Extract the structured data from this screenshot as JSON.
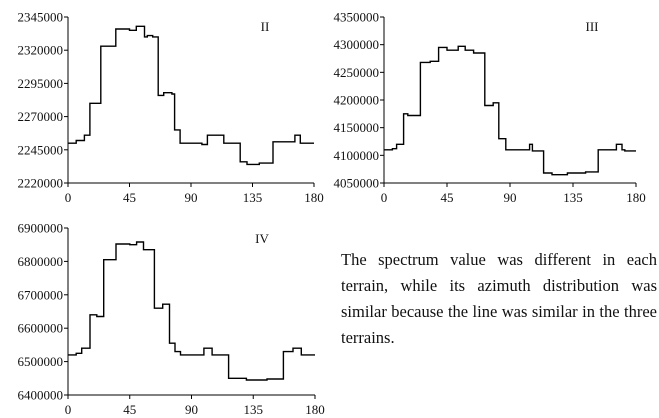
{
  "chart_data": [
    {
      "type": "line",
      "panel_label": "II",
      "x_ticks": [
        0,
        45,
        90,
        135,
        180
      ],
      "xlim": [
        0,
        180
      ],
      "ylim": [
        2220000,
        2345000
      ],
      "y_ticks": [
        "2345000",
        "2320000",
        "2295000",
        "2270000",
        "2245000",
        "2220000"
      ],
      "series": [
        {
          "x": [
            0,
            6,
            6,
            12,
            12,
            16,
            16,
            24,
            24,
            35,
            35,
            45,
            45,
            50,
            50,
            56,
            56,
            58,
            58,
            62,
            62,
            66,
            66,
            70,
            70,
            76,
            76,
            78,
            78,
            82,
            82,
            98,
            98,
            102,
            102,
            114,
            114,
            126,
            126,
            131,
            131,
            140,
            140,
            150,
            150,
            166,
            166,
            170,
            170,
            172,
            172,
            180
          ],
          "y": [
            2250000,
            2250000,
            2252000,
            2252000,
            2256000,
            2256000,
            2280000,
            2280000,
            2323000,
            2323000,
            2336000,
            2336000,
            2335000,
            2335000,
            2338000,
            2338000,
            2330000,
            2330000,
            2331000,
            2331000,
            2330000,
            2330000,
            2286000,
            2286000,
            2288000,
            2288000,
            2287000,
            2287000,
            2260000,
            2260000,
            2250000,
            2250000,
            2249000,
            2249000,
            2256000,
            2256000,
            2250000,
            2250000,
            2236000,
            2236000,
            2234000,
            2234000,
            2235000,
            2235000,
            2251000,
            2251000,
            2256000,
            2256000,
            2250000,
            2250000,
            2250000,
            2250000
          ]
        }
      ]
    },
    {
      "type": "line",
      "panel_label": "III",
      "x_ticks": [
        0,
        45,
        90,
        135,
        180
      ],
      "xlim": [
        0,
        180
      ],
      "ylim": [
        4050000,
        4350000
      ],
      "y_ticks": [
        "4350000",
        "4300000",
        "4250000",
        "4200000",
        "4150000",
        "4100000",
        "4050000"
      ],
      "series": [
        {
          "x": [
            0,
            6,
            6,
            9,
            9,
            14,
            14,
            17,
            17,
            26,
            26,
            33,
            33,
            39,
            39,
            45,
            45,
            53,
            53,
            58,
            58,
            64,
            64,
            72,
            72,
            78,
            78,
            82,
            82,
            87,
            87,
            104,
            104,
            106,
            106,
            114,
            114,
            120,
            120,
            131,
            131,
            144,
            144,
            153,
            153,
            166,
            166,
            170,
            170,
            172,
            172,
            180
          ],
          "y": [
            4110000,
            4110000,
            4112000,
            4112000,
            4120000,
            4120000,
            4175000,
            4175000,
            4172000,
            4172000,
            4268000,
            4268000,
            4270000,
            4270000,
            4295000,
            4295000,
            4290000,
            4290000,
            4297000,
            4297000,
            4290000,
            4290000,
            4285000,
            4285000,
            4190000,
            4190000,
            4195000,
            4195000,
            4130000,
            4130000,
            4110000,
            4110000,
            4120000,
            4120000,
            4108000,
            4108000,
            4068000,
            4068000,
            4065000,
            4065000,
            4068000,
            4068000,
            4070000,
            4070000,
            4110000,
            4110000,
            4120000,
            4120000,
            4110000,
            4110000,
            4108000,
            4108000
          ]
        }
      ]
    },
    {
      "type": "line",
      "panel_label": "IV",
      "x_ticks": [
        0,
        45,
        90,
        135,
        180
      ],
      "xlim": [
        0,
        180
      ],
      "ylim": [
        6400000,
        6900000
      ],
      "y_ticks": [
        "6900000",
        "6800000",
        "6700000",
        "6600000",
        "6500000",
        "6400000"
      ],
      "series": [
        {
          "x": [
            0,
            6,
            6,
            10,
            10,
            16,
            16,
            21,
            21,
            26,
            26,
            35,
            35,
            45,
            45,
            50,
            50,
            55,
            55,
            63,
            63,
            69,
            69,
            74,
            74,
            78,
            78,
            82,
            82,
            99,
            99,
            105,
            105,
            117,
            117,
            130,
            130,
            145,
            145,
            157,
            157,
            164,
            164,
            170,
            170,
            172,
            172,
            180
          ],
          "y": [
            6520000,
            6520000,
            6525000,
            6525000,
            6540000,
            6540000,
            6640000,
            6640000,
            6635000,
            6635000,
            6805000,
            6805000,
            6852000,
            6852000,
            6850000,
            6850000,
            6858000,
            6858000,
            6835000,
            6835000,
            6660000,
            6660000,
            6672000,
            6672000,
            6555000,
            6555000,
            6530000,
            6530000,
            6520000,
            6520000,
            6540000,
            6540000,
            6520000,
            6520000,
            6450000,
            6450000,
            6445000,
            6445000,
            6448000,
            6448000,
            6530000,
            6530000,
            6540000,
            6540000,
            6520000,
            6520000,
            6520000,
            6520000
          ]
        }
      ]
    }
  ],
  "caption": "The spectrum value was different in each terrain, while its azimuth distribution was similar because the line was similar in the three terrains."
}
